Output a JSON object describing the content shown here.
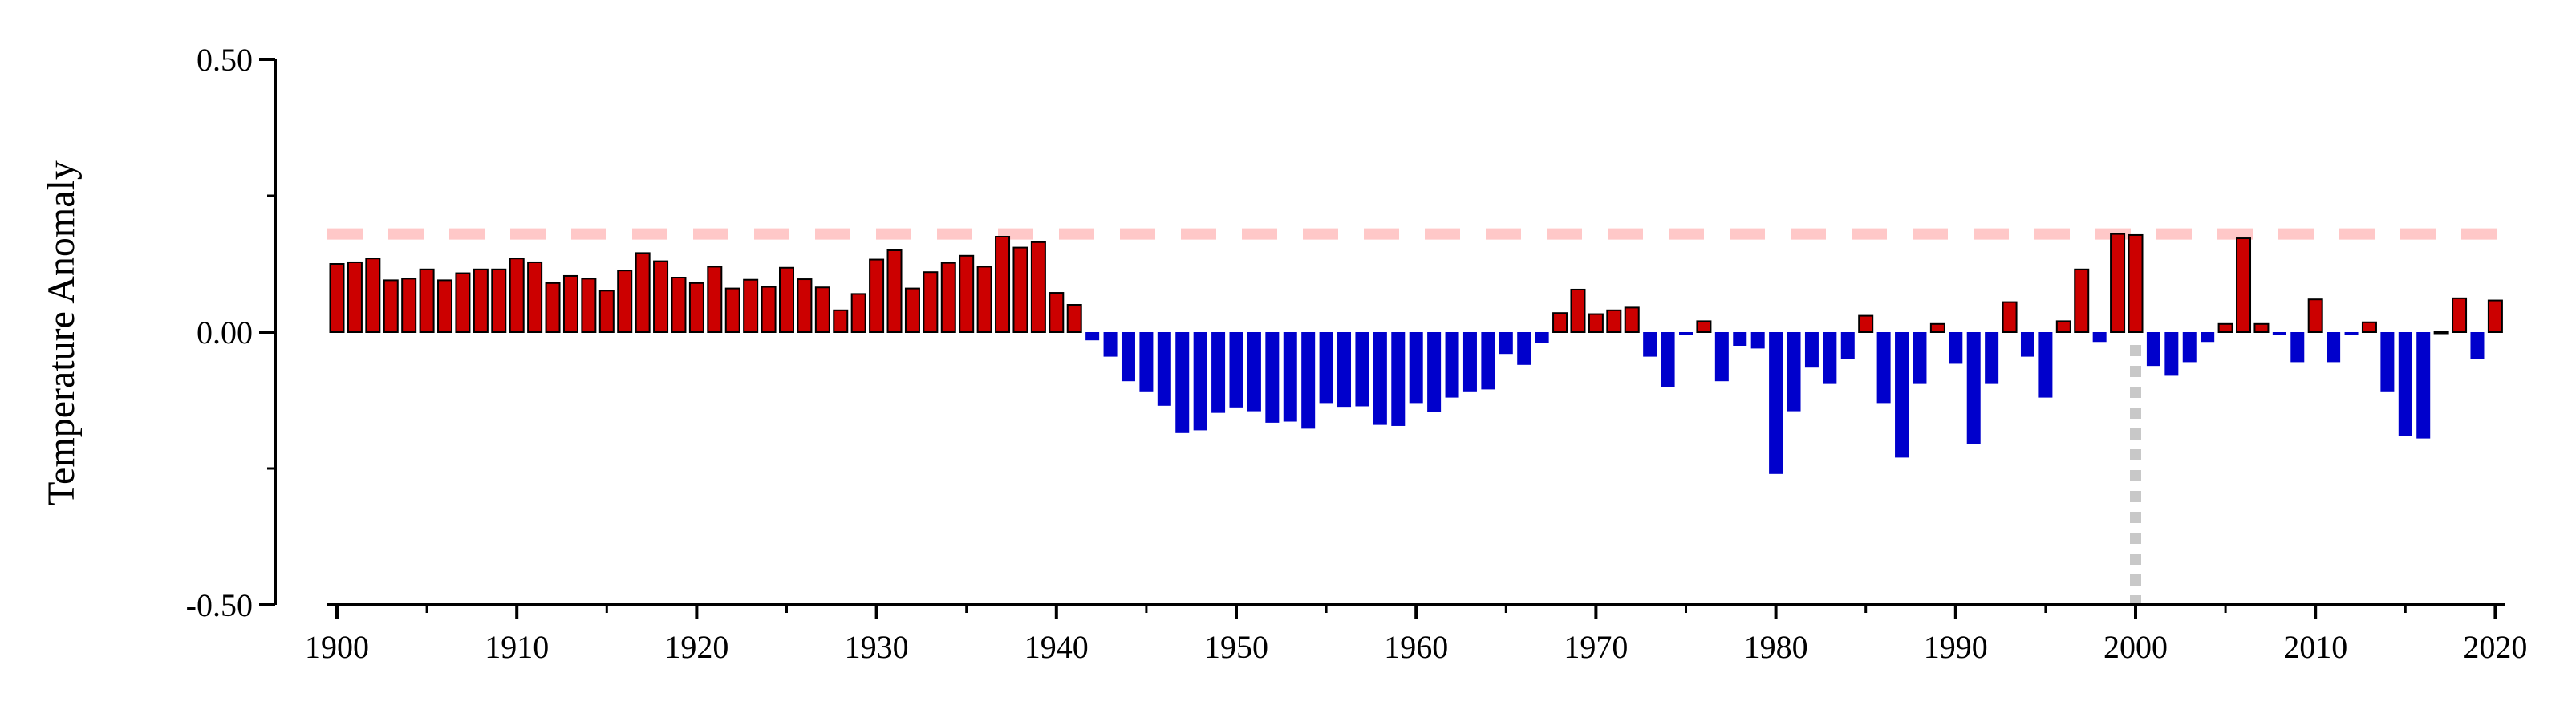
{
  "chart_data": {
    "type": "bar",
    "title": "",
    "xlabel": "",
    "ylabel": "Temperature Anomaly",
    "xlim": [
      1899,
      2021
    ],
    "ylim": [
      -0.5,
      0.5
    ],
    "x_ticks": [
      1900,
      1910,
      1920,
      1930,
      1940,
      1950,
      1960,
      1970,
      1980,
      1990,
      2000,
      2010,
      2020
    ],
    "x_tick_labels": [
      "1900",
      "1910",
      "1920",
      "1930",
      "1940",
      "1950",
      "1960",
      "1970",
      "1980",
      "1990",
      "2000",
      "2010",
      "2020"
    ],
    "y_ticks": [
      -0.5,
      0.0,
      0.5
    ],
    "y_tick_labels": [
      "-0.50",
      "0.00",
      "0.50"
    ],
    "grid": false,
    "legend": "none",
    "colors": {
      "positive": "#cc0000",
      "negative": "#0000cc",
      "outline": "#000000",
      "reference_line": "#ffc8c8",
      "marker_line": "#c8c8c8"
    },
    "reference_line": {
      "orientation": "horizontal",
      "y": 0.18,
      "style": "dashed"
    },
    "marker_line": {
      "orientation": "vertical",
      "x": 2000,
      "y_range": [
        -0.5,
        0.0
      ],
      "style": "dotted"
    },
    "years": [
      1900,
      1901,
      1902,
      1903,
      1904,
      1905,
      1906,
      1907,
      1908,
      1909,
      1910,
      1911,
      1912,
      1913,
      1914,
      1915,
      1916,
      1917,
      1918,
      1919,
      1920,
      1921,
      1922,
      1923,
      1924,
      1925,
      1926,
      1927,
      1928,
      1929,
      1930,
      1931,
      1932,
      1933,
      1934,
      1935,
      1936,
      1937,
      1938,
      1939,
      1940,
      1941,
      1942,
      1943,
      1944,
      1945,
      1946,
      1947,
      1948,
      1949,
      1950,
      1951,
      1952,
      1953,
      1954,
      1955,
      1956,
      1957,
      1958,
      1959,
      1960,
      1961,
      1962,
      1963,
      1964,
      1965,
      1966,
      1967,
      1968,
      1969,
      1970,
      1971,
      1972,
      1973,
      1974,
      1975,
      1976,
      1977,
      1978,
      1979,
      1980,
      1981,
      1982,
      1983,
      1984,
      1985,
      1986,
      1987,
      1988,
      1989,
      1990,
      1991,
      1992,
      1993,
      1994,
      1995,
      1996,
      1997,
      1998,
      1999,
      2000,
      2001,
      2002,
      2003,
      2004,
      2005,
      2006,
      2007,
      2008,
      2009,
      2010,
      2011,
      2012,
      2013,
      2014,
      2015,
      2016,
      2017,
      2018,
      2019,
      2020
    ],
    "values": [
      0.125,
      0.128,
      0.135,
      0.095,
      0.098,
      0.115,
      0.095,
      0.108,
      0.115,
      0.115,
      0.135,
      0.128,
      0.09,
      0.103,
      0.098,
      0.076,
      0.113,
      0.145,
      0.13,
      0.1,
      0.09,
      0.12,
      0.08,
      0.096,
      0.083,
      0.118,
      0.097,
      0.082,
      0.04,
      0.07,
      0.133,
      0.15,
      0.08,
      0.11,
      0.127,
      0.14,
      0.12,
      0.175,
      0.155,
      0.165,
      0.072,
      0.05,
      -0.015,
      -0.045,
      -0.09,
      -0.11,
      -0.135,
      -0.185,
      -0.18,
      -0.148,
      -0.138,
      -0.145,
      -0.166,
      -0.164,
      -0.177,
      -0.13,
      -0.137,
      -0.136,
      -0.17,
      -0.172,
      -0.13,
      -0.147,
      -0.12,
      -0.11,
      -0.105,
      -0.04,
      -0.06,
      -0.02,
      0.035,
      0.078,
      0.033,
      0.04,
      0.045,
      -0.045,
      -0.1,
      -0.005,
      0.02,
      -0.09,
      -0.025,
      -0.03,
      -0.26,
      -0.145,
      -0.065,
      -0.095,
      -0.05,
      0.03,
      -0.13,
      -0.23,
      -0.095,
      0.015,
      -0.058,
      -0.205,
      -0.095,
      0.055,
      -0.045,
      -0.12,
      0.02,
      0.115,
      -0.018,
      0.18,
      0.178,
      -0.062,
      -0.08,
      -0.055,
      -0.018,
      0.015,
      0.172,
      0.015,
      -0.005,
      -0.055,
      0.06,
      -0.055,
      -0.005,
      0.018,
      -0.11,
      -0.19,
      -0.195,
      0.0,
      0.062,
      -0.05,
      0.058
    ]
  }
}
